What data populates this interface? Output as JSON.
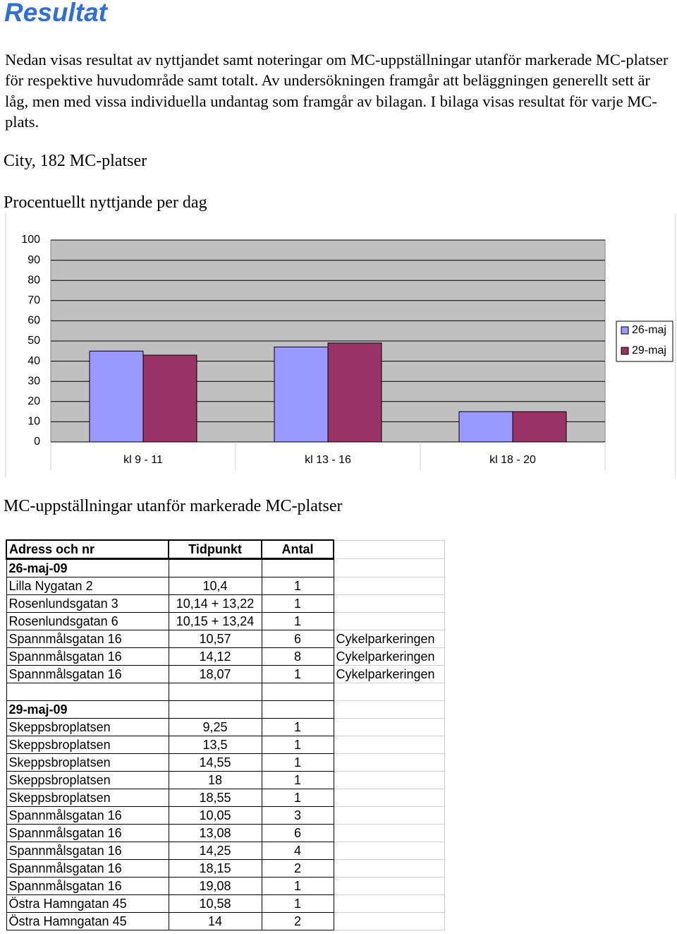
{
  "heading": "Resultat",
  "intro": "Nedan visas resultat av nyttjandet samt noteringar om MC-uppställningar utanför markerade MC-platser för respektive huvudområde samt totalt. Av undersökningen framgår att beläggningen generellt sett är låg, men med vissa individuella undantag som framgår av bilagan. I bilaga visas resultat för varje MC-plats.",
  "section_title": "City, 182 MC-platser",
  "chart_data": {
    "type": "bar",
    "title": "Procentuellt nyttjande per dag",
    "categories": [
      "kl 9 - 11",
      "kl 13 - 16",
      "kl 18 - 20"
    ],
    "series": [
      {
        "name": "26-maj",
        "color": "#9999ff",
        "values": [
          45,
          47,
          15
        ]
      },
      {
        "name": "29-maj",
        "color": "#993366",
        "values": [
          43,
          49,
          15
        ]
      }
    ],
    "ylim": [
      0,
      100
    ],
    "yticks": [
      0,
      10,
      20,
      30,
      40,
      50,
      60,
      70,
      80,
      90,
      100
    ],
    "grid": true,
    "legend": "right"
  },
  "table_title": "MC-uppställningar utanför markerade MC-platser",
  "table": {
    "header": [
      "Adress och nr",
      "Tidpunkt",
      "Antal"
    ],
    "groups": [
      {
        "date": "26-maj-09",
        "rows": [
          [
            "Lilla Nygatan 2",
            "10,4",
            1
          ],
          [
            "Rosenlundsgatan 3",
            "10,14 + 13,22",
            1
          ],
          [
            "Rosenlundsgatan 6",
            "10,15 + 13,24",
            1
          ],
          [
            "Spannmålsgatan 16",
            "10,57",
            6,
            "Cykelparkeringen"
          ],
          [
            "Spannmålsgatan 16",
            "14,12",
            8,
            "Cykelparkeringen"
          ],
          [
            "Spannmålsgatan 16",
            "18,07",
            1,
            "Cykelparkeringen"
          ]
        ]
      },
      {
        "date": "29-maj-09",
        "rows": [
          [
            "Skeppsbroplatsen",
            "9,25",
            1
          ],
          [
            "Skeppsbroplatsen",
            "13,5",
            1
          ],
          [
            "Skeppsbroplatsen",
            "14,55",
            1
          ],
          [
            "Skeppsbroplatsen",
            "18",
            1
          ],
          [
            "Skeppsbroplatsen",
            "18,55",
            1
          ],
          [
            "Spannmålsgatan 16",
            "10,05",
            3
          ],
          [
            "Spannmålsgatan 16",
            "13,08",
            6
          ],
          [
            "Spannmålsgatan 16",
            "14,25",
            4
          ],
          [
            "Spannmålsgatan 16",
            "18,15",
            2
          ],
          [
            "Spannmålsgatan 16",
            "19,08",
            1
          ],
          [
            "Östra Hamngatan 45",
            "10,58",
            1
          ],
          [
            "Östra Hamngatan 45",
            "14",
            2
          ]
        ]
      }
    ]
  }
}
